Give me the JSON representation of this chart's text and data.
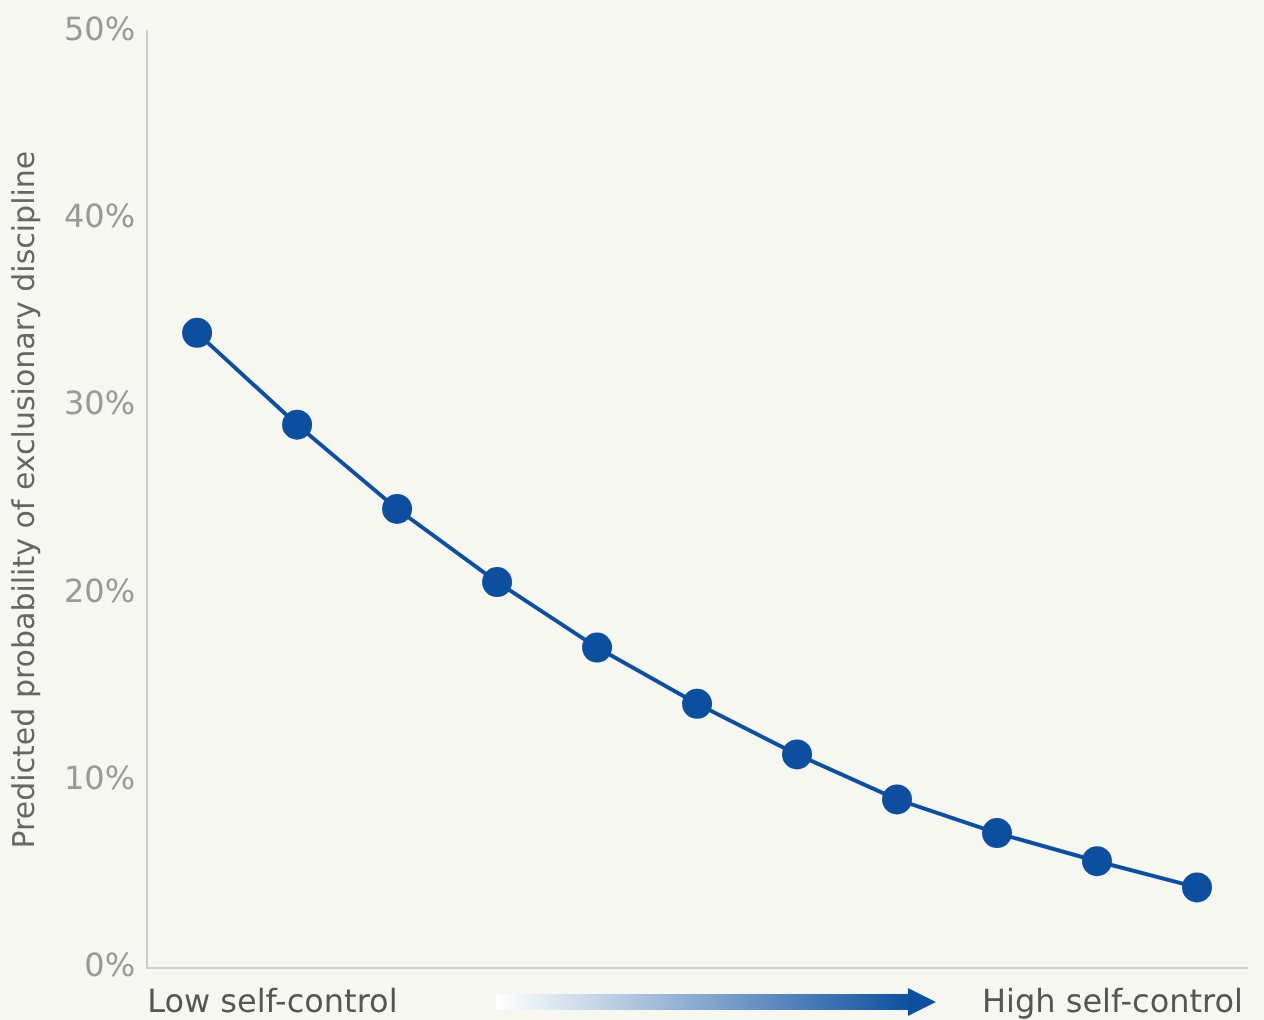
{
  "chart_data": {
    "type": "line",
    "ylabel": "Predicted probability of exclusionary discipline",
    "categories": [
      null,
      null,
      null,
      null,
      null,
      null,
      null,
      null,
      null,
      null,
      null
    ],
    "series": [
      {
        "color": "#0d4f9e",
        "values": [
          33.9,
          29.0,
          24.5,
          20.6,
          17.1,
          14.1,
          11.4,
          9.0,
          7.2,
          5.7,
          4.3
        ]
      }
    ],
    "ylim": [
      0,
      50
    ],
    "yticks": [
      {
        "value": 0,
        "label": "0%"
      },
      {
        "value": 10,
        "label": "10%"
      },
      {
        "value": 20,
        "label": "20%"
      },
      {
        "value": 30,
        "label": "30%"
      },
      {
        "value": 40,
        "label": "40%"
      },
      {
        "value": 50,
        "label": "50%"
      }
    ],
    "annotations": [
      "Low self-control",
      "High self-control"
    ],
    "grid": false,
    "legend": false,
    "marker": "circle",
    "line_style": "solid"
  }
}
